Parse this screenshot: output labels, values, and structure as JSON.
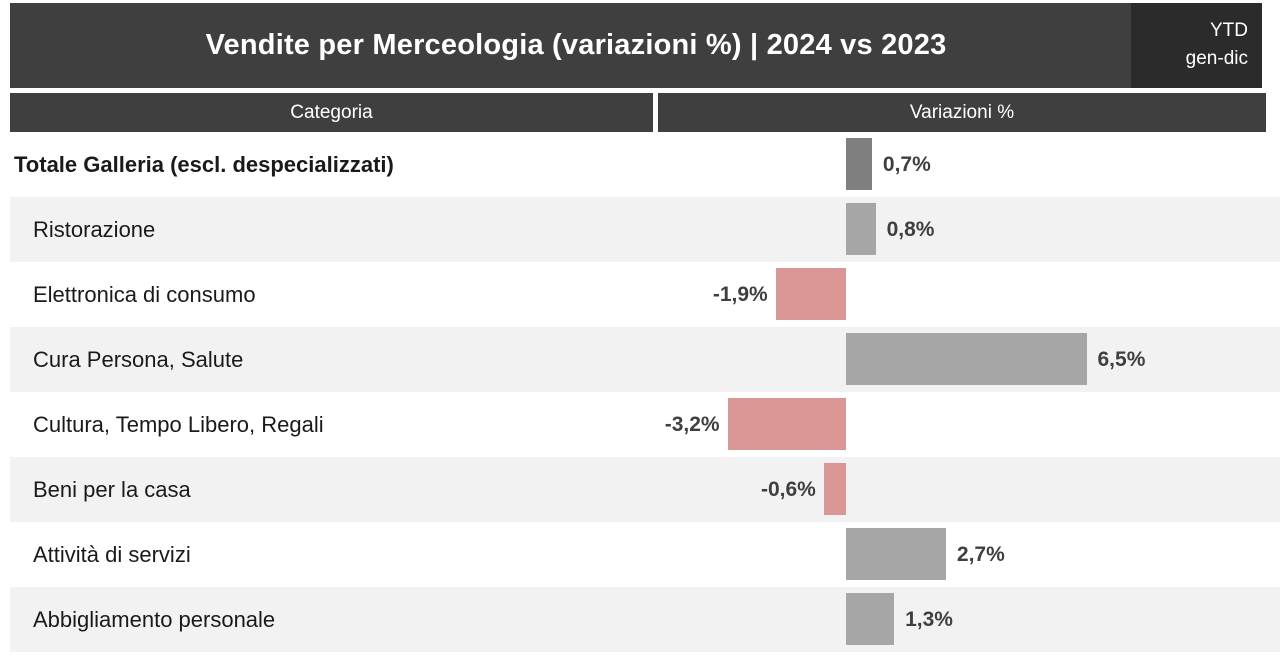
{
  "header": {
    "title": "Vendite per Merceologia (variazioni %) | 2024 vs 2023",
    "badge": {
      "line1": "YTD",
      "line2": "gen-dic"
    }
  },
  "table_header": {
    "category_label": "Categoria",
    "value_label": "Variazioni %"
  },
  "chart_data": {
    "type": "bar",
    "orientation": "horizontal",
    "title": "Vendite per Merceologia (variazioni %) | 2024 vs 2023",
    "period": "YTD gen-dic",
    "categories": [
      "Totale Galleria (escl. despecializzati)",
      "Ristorazione",
      "Elettronica di consumo",
      "Cura Persona, Salute",
      "Cultura, Tempo Libero, Regali",
      "Beni per la casa",
      "Attività di servizi",
      "Abbigliamento personale"
    ],
    "values": [
      0.7,
      0.8,
      -1.9,
      6.5,
      -3.2,
      -0.6,
      2.7,
      1.3
    ],
    "value_labels": [
      "0,7%",
      "0,8%",
      "-1,9%",
      "6,5%",
      "-3,2%",
      "-0,6%",
      "2,7%",
      "1,3%"
    ],
    "xlabel": "Variazioni %",
    "xlim": [
      -5.1,
      11.5
    ],
    "grid": false,
    "legend": false,
    "colors": {
      "total_bar": "#7f7f7f",
      "positive_bar": "#a6a6a6",
      "negative_bar": "#d99694",
      "row_alt_background": "#f2f2f2",
      "header_background": "#3f3f3f",
      "badge_background": "#2b2b2b",
      "value_text": "#3f3f3f"
    }
  }
}
